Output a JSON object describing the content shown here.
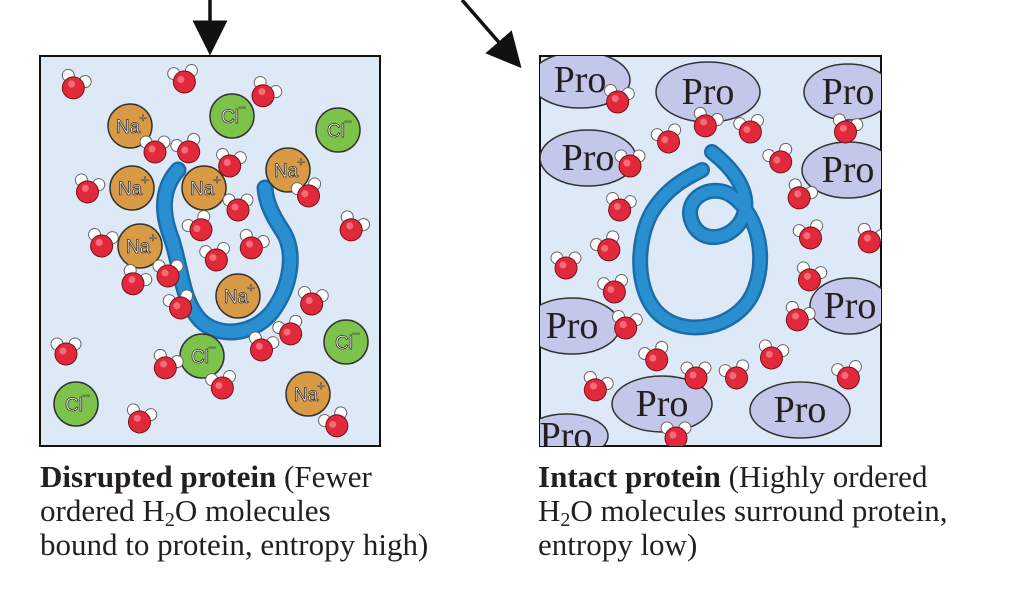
{
  "panels": {
    "disrupted": {
      "caption": {
        "bold": "Disrupted protein",
        "line1_rest": " (Fewer",
        "line2_pre": "ordered H",
        "line2_sub": "2",
        "line2_post": "O molecules",
        "line3": "bound to protein, entropy high)"
      },
      "ion_labels": {
        "na": "Na",
        "cl": "Cl",
        "plus": "+",
        "minus": "−"
      }
    },
    "intact": {
      "caption": {
        "bold": "Intact protein",
        "line1_rest": " (Highly ordered",
        "line2_pre": "H",
        "line2_sub": "2",
        "line2_post": "O molecules surround protein,",
        "line3": "entropy low)"
      },
      "pro_label": "Pro"
    }
  },
  "colors": {
    "panel_fill": "#dde9f7",
    "protein_chain": "#2a8fd0",
    "na_ion": "#d99a45",
    "cl_ion": "#7dc24a",
    "pro_ellipse": "#c3c7ea",
    "water_oxygen": "#e02a3b",
    "water_hydrogen": "#ffffff"
  }
}
